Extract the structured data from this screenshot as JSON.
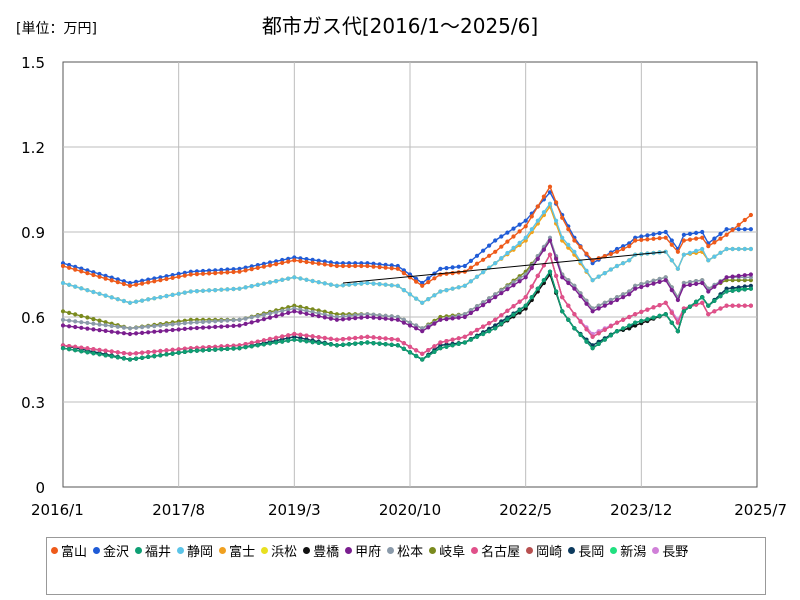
{
  "header": {
    "unit": "[単位：万円]",
    "title": "都市ガス代[2016/1～2025/6]"
  },
  "chart_data": {
    "type": "line",
    "title": "都市ガス代[2016/1～2025/6]",
    "ylabel": "",
    "xlabel": "",
    "ylim": [
      0,
      1.5
    ],
    "xlim": [
      "2016-01",
      "2025-07"
    ],
    "yticks": [
      0,
      0.3,
      0.6,
      0.9,
      1.2,
      1.5
    ],
    "ytick_labels": [
      "0",
      "0.3",
      "0.6",
      "0.9",
      "1.2",
      "1.5"
    ],
    "xticks": [
      "2016-01",
      "2017-08",
      "2019-03",
      "2020-10",
      "2022-05",
      "2023-12",
      "2025-07"
    ],
    "xtick_labels": [
      "2016/1",
      "2017/8",
      "2019/3",
      "2020/10",
      "2022/5",
      "2023/12",
      "2025/7"
    ],
    "grid": true,
    "legend_position": "bottom",
    "trend_line": {
      "from": [
        "2019-11",
        0.72
      ],
      "to": [
        "2024-04",
        0.83
      ]
    },
    "anchor_months": [
      "2016-01",
      "2016-12",
      "2017-10",
      "2018-06",
      "2019-03",
      "2019-10",
      "2020-03",
      "2020-08",
      "2020-12",
      "2021-03",
      "2021-07",
      "2021-12",
      "2022-05",
      "2022-09",
      "2022-11",
      "2023-01",
      "2023-04",
      "2023-08",
      "2023-10",
      "2023-11",
      "2024-04",
      "2024-06",
      "2024-07",
      "2024-10",
      "2024-11",
      "2025-02",
      "2025-06"
    ],
    "series": [
      {
        "name": "富山",
        "color": "#ee5a1a",
        "anchors": [
          0.78,
          0.71,
          0.75,
          0.76,
          0.8,
          0.78,
          0.78,
          0.77,
          0.71,
          0.75,
          0.76,
          0.83,
          0.92,
          1.06,
          0.95,
          0.87,
          0.8,
          0.83,
          0.85,
          0.87,
          0.88,
          0.83,
          0.87,
          0.88,
          0.85,
          0.89,
          0.96
        ]
      },
      {
        "name": "金沢",
        "color": "#1f5bd6",
        "anchors": [
          0.79,
          0.72,
          0.76,
          0.77,
          0.81,
          0.79,
          0.79,
          0.78,
          0.72,
          0.77,
          0.78,
          0.87,
          0.94,
          1.04,
          0.96,
          0.88,
          0.79,
          0.84,
          0.86,
          0.88,
          0.9,
          0.84,
          0.89,
          0.9,
          0.86,
          0.91,
          0.91
        ]
      },
      {
        "name": "福井",
        "color": "#0e9f74",
        "anchors": [
          0.49,
          0.45,
          0.48,
          0.49,
          0.52,
          0.5,
          0.51,
          0.5,
          0.45,
          0.49,
          0.51,
          0.56,
          0.64,
          0.76,
          0.62,
          0.56,
          0.49,
          0.55,
          0.57,
          0.58,
          0.61,
          0.55,
          0.62,
          0.67,
          0.64,
          0.69,
          0.7
        ]
      },
      {
        "name": "静岡",
        "color": "#5bc4e8",
        "anchors": [
          0.72,
          0.65,
          0.69,
          0.7,
          0.74,
          0.71,
          0.72,
          0.71,
          0.65,
          0.69,
          0.71,
          0.79,
          0.88,
          1.0,
          0.88,
          0.83,
          0.73,
          0.78,
          0.8,
          0.82,
          0.83,
          0.77,
          0.82,
          0.84,
          0.8,
          0.84,
          0.84
        ]
      },
      {
        "name": "富士",
        "color": "#f0a020",
        "anchors": [
          0.72,
          0.65,
          0.69,
          0.7,
          0.74,
          0.71,
          0.72,
          0.71,
          0.65,
          0.69,
          0.71,
          0.79,
          0.87,
          0.99,
          0.87,
          0.82,
          0.73,
          0.78,
          0.8,
          0.82,
          0.83,
          0.77,
          0.82,
          0.83,
          0.8,
          0.84,
          0.84
        ]
      },
      {
        "name": "浜松",
        "color": "#e8e020",
        "anchors": [
          0.72,
          0.65,
          0.69,
          0.7,
          0.74,
          0.71,
          0.72,
          0.71,
          0.65,
          0.69,
          0.71,
          0.79,
          0.87,
          0.99,
          0.87,
          0.82,
          0.73,
          0.78,
          0.8,
          0.82,
          0.83,
          0.77,
          0.82,
          0.83,
          0.8,
          0.84,
          0.84
        ]
      },
      {
        "name": "豊橋",
        "color": "#111111",
        "anchors": [
          0.49,
          0.45,
          0.48,
          0.49,
          0.52,
          0.5,
          0.51,
          0.5,
          0.45,
          0.49,
          0.51,
          0.56,
          0.63,
          0.75,
          0.62,
          0.56,
          0.49,
          0.55,
          0.56,
          0.57,
          0.61,
          0.55,
          0.62,
          0.67,
          0.64,
          0.69,
          0.7
        ]
      },
      {
        "name": "甲府",
        "color": "#7a1e8f",
        "anchors": [
          0.57,
          0.54,
          0.56,
          0.57,
          0.62,
          0.59,
          0.6,
          0.59,
          0.55,
          0.59,
          0.6,
          0.67,
          0.74,
          0.87,
          0.74,
          0.7,
          0.62,
          0.66,
          0.68,
          0.7,
          0.73,
          0.66,
          0.71,
          0.72,
          0.69,
          0.74,
          0.75
        ]
      },
      {
        "name": "松本",
        "color": "#8a9aaa",
        "anchors": [
          0.59,
          0.56,
          0.58,
          0.59,
          0.63,
          0.6,
          0.61,
          0.6,
          0.56,
          0.59,
          0.61,
          0.68,
          0.75,
          0.88,
          0.75,
          0.71,
          0.63,
          0.67,
          0.69,
          0.71,
          0.74,
          0.67,
          0.72,
          0.73,
          0.7,
          0.74,
          0.74
        ]
      },
      {
        "name": "岐阜",
        "color": "#7a8a1e",
        "anchors": [
          0.62,
          0.56,
          0.59,
          0.59,
          0.64,
          0.61,
          0.61,
          0.6,
          0.56,
          0.6,
          0.61,
          0.68,
          0.76,
          0.87,
          0.75,
          0.71,
          0.63,
          0.67,
          0.69,
          0.71,
          0.74,
          0.67,
          0.72,
          0.73,
          0.7,
          0.73,
          0.73
        ]
      },
      {
        "name": "名古屋",
        "color": "#e0508a",
        "anchors": [
          0.5,
          0.47,
          0.49,
          0.5,
          0.54,
          0.52,
          0.53,
          0.52,
          0.47,
          0.51,
          0.53,
          0.59,
          0.67,
          0.82,
          0.67,
          0.61,
          0.53,
          0.58,
          0.6,
          0.61,
          0.65,
          0.58,
          0.63,
          0.65,
          0.61,
          0.64,
          0.64
        ]
      },
      {
        "name": "岡崎",
        "color": "#b85050",
        "anchors": [
          0.5,
          0.47,
          0.49,
          0.5,
          0.54,
          0.52,
          0.53,
          0.52,
          0.47,
          0.51,
          0.53,
          0.59,
          0.67,
          0.82,
          0.67,
          0.61,
          0.53,
          0.58,
          0.6,
          0.61,
          0.65,
          0.58,
          0.63,
          0.65,
          0.61,
          0.64,
          0.64
        ]
      },
      {
        "name": "長岡",
        "color": "#0c3a5e",
        "anchors": [
          0.5,
          0.45,
          0.48,
          0.49,
          0.53,
          0.5,
          0.51,
          0.5,
          0.45,
          0.5,
          0.51,
          0.57,
          0.64,
          0.76,
          0.62,
          0.56,
          0.5,
          0.55,
          0.56,
          0.58,
          0.61,
          0.55,
          0.62,
          0.67,
          0.64,
          0.7,
          0.71
        ]
      },
      {
        "name": "新潟",
        "color": "#20e080",
        "anchors": [
          0.5,
          0.45,
          0.48,
          0.49,
          0.53,
          0.5,
          0.51,
          0.5,
          0.45,
          0.5,
          0.51,
          0.57,
          0.64,
          0.76,
          0.62,
          0.56,
          0.5,
          0.55,
          0.56,
          0.58,
          0.61,
          0.55,
          0.62,
          0.67,
          0.64,
          0.7,
          0.7
        ]
      },
      {
        "name": "長野",
        "color": "#d080d8",
        "anchors": [
          0.5,
          0.47,
          0.49,
          0.5,
          0.54,
          0.52,
          0.53,
          0.52,
          0.47,
          0.51,
          0.53,
          0.59,
          0.67,
          0.82,
          0.67,
          0.61,
          0.54,
          0.58,
          0.6,
          0.61,
          0.65,
          0.59,
          0.63,
          0.65,
          0.61,
          0.64,
          0.64
        ]
      }
    ]
  }
}
